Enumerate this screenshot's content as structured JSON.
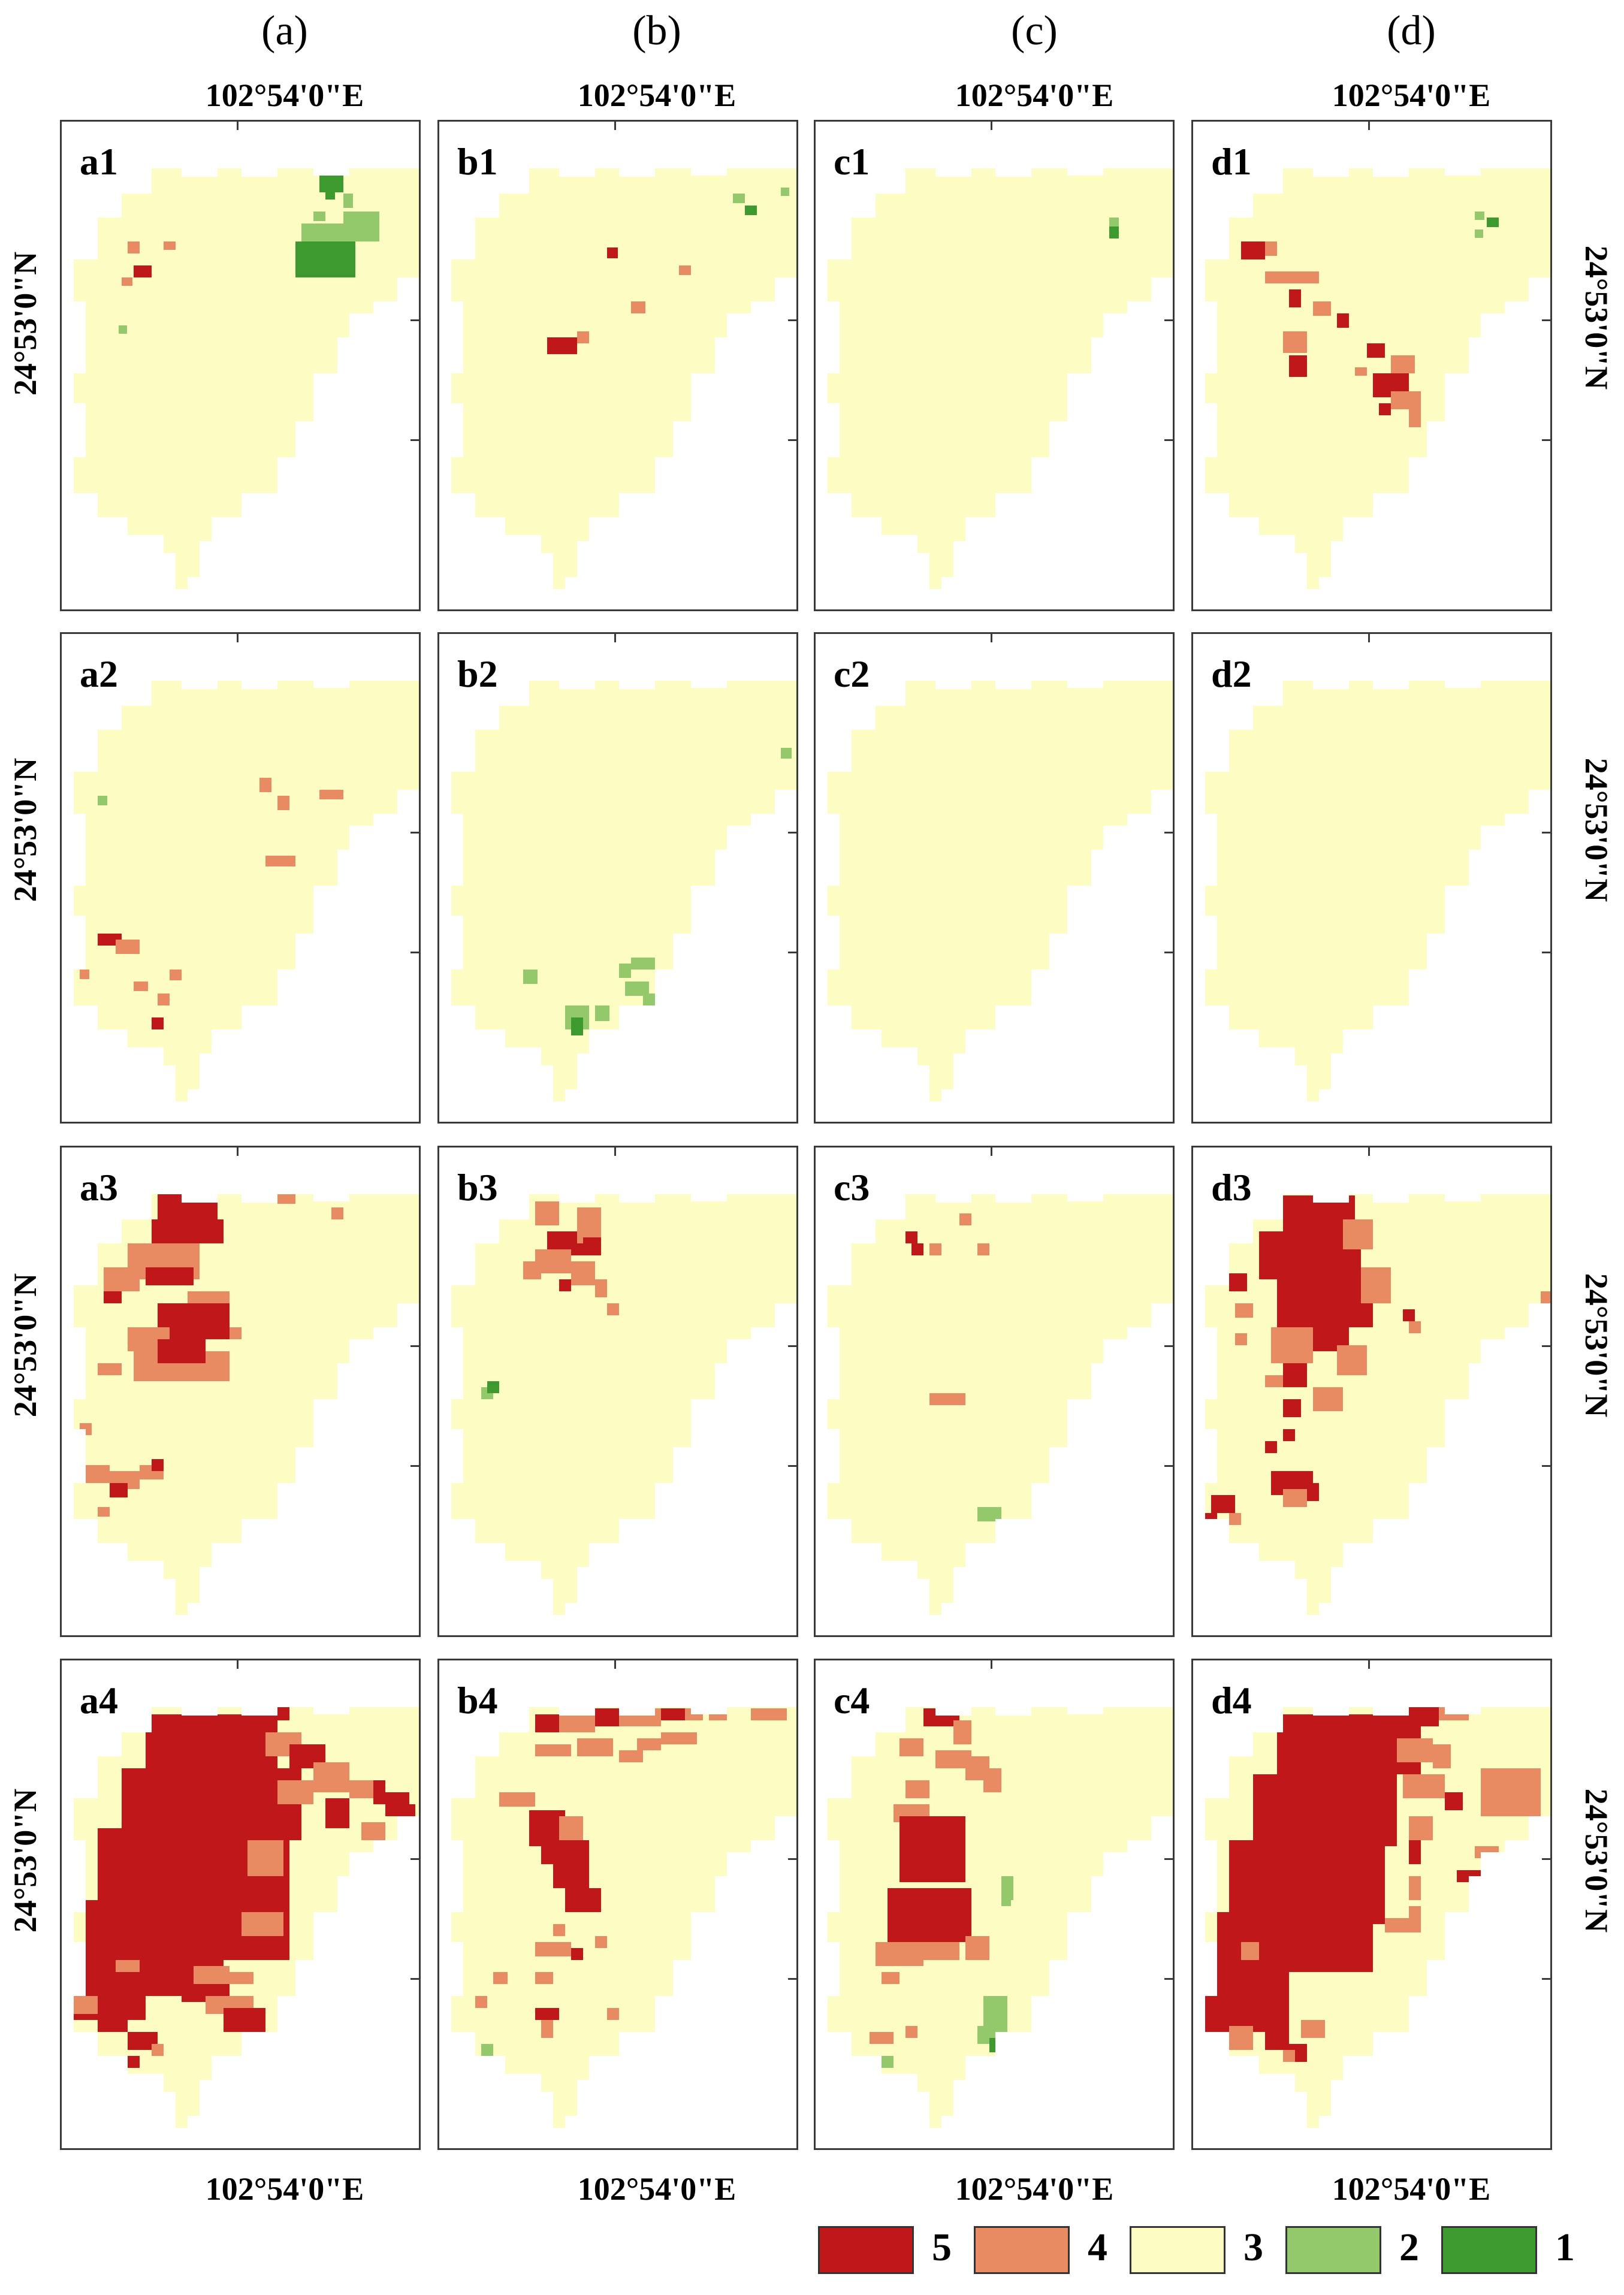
{
  "columns": [
    "(a)",
    "(b)",
    "(c)",
    "(d)"
  ],
  "rows": [
    [
      "a1",
      "b1",
      "c1",
      "d1"
    ],
    [
      "a2",
      "b2",
      "c2",
      "d2"
    ],
    [
      "a3",
      "b3",
      "c3",
      "d3"
    ],
    [
      "a4",
      "b4",
      "c4",
      "d4"
    ]
  ],
  "longitude_label": "102°54'0\"E",
  "latitude_label": "24°53'0\"N",
  "legend": [
    {
      "label": "5",
      "color": "#c0171a"
    },
    {
      "label": "4",
      "color": "#e88a62"
    },
    {
      "label": "3",
      "color": "#fdfdc3"
    },
    {
      "label": "2",
      "color": "#93c96b"
    },
    {
      "label": "1",
      "color": "#3c9a2e"
    }
  ],
  "colors": {
    "level_5": "#c0171a",
    "level_4": "#e88a62",
    "level_3": "#fdfdc3",
    "level_2": "#93c96b",
    "level_1": "#3c9a2e",
    "frame": "#3a3a3a"
  }
}
